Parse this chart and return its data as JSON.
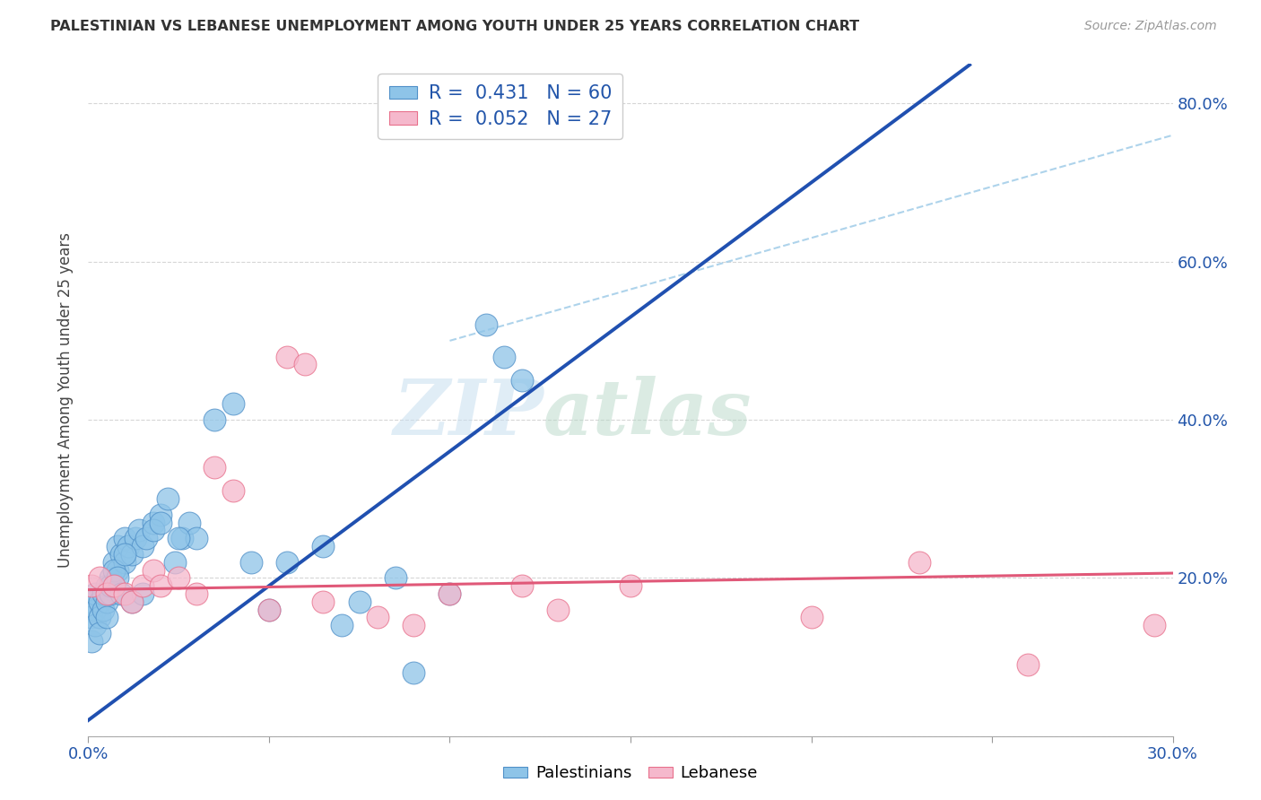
{
  "title": "PALESTINIAN VS LEBANESE UNEMPLOYMENT AMONG YOUTH UNDER 25 YEARS CORRELATION CHART",
  "source": "Source: ZipAtlas.com",
  "ylabel": "Unemployment Among Youth under 25 years",
  "xlim": [
    0.0,
    0.3
  ],
  "ylim": [
    0.0,
    0.85
  ],
  "xticks": [
    0.0,
    0.05,
    0.1,
    0.15,
    0.2,
    0.25,
    0.3
  ],
  "yticks": [
    0.0,
    0.2,
    0.4,
    0.6,
    0.8
  ],
  "ytick_labels_right": [
    "",
    "20.0%",
    "40.0%",
    "60.0%",
    "80.0%"
  ],
  "R_pal": 0.431,
  "N_pal": 60,
  "R_leb": 0.052,
  "N_leb": 27,
  "color_palestinians": "#8ec4e8",
  "color_lebanese": "#f5b8cc",
  "edge_palestinians": "#5090c8",
  "edge_lebanese": "#e8708c",
  "line_palestinians": "#2050b0",
  "line_lebanese": "#e05878",
  "line_dashed": "#a0cce8",
  "watermark_zip": "ZIP",
  "watermark_atlas": "atlas",
  "palestinians_x": [
    0.001,
    0.001,
    0.001,
    0.002,
    0.002,
    0.002,
    0.003,
    0.003,
    0.003,
    0.004,
    0.004,
    0.005,
    0.005,
    0.005,
    0.006,
    0.006,
    0.007,
    0.007,
    0.008,
    0.008,
    0.009,
    0.01,
    0.01,
    0.011,
    0.012,
    0.013,
    0.014,
    0.015,
    0.016,
    0.018,
    0.02,
    0.022,
    0.024,
    0.026,
    0.028,
    0.03,
    0.035,
    0.04,
    0.045,
    0.05,
    0.055,
    0.065,
    0.07,
    0.075,
    0.085,
    0.09,
    0.1,
    0.11,
    0.115,
    0.12,
    0.006,
    0.007,
    0.008,
    0.009,
    0.01,
    0.012,
    0.015,
    0.018,
    0.02,
    0.025
  ],
  "palestinians_y": [
    0.17,
    0.15,
    0.12,
    0.16,
    0.18,
    0.14,
    0.17,
    0.15,
    0.13,
    0.16,
    0.18,
    0.19,
    0.17,
    0.15,
    0.2,
    0.18,
    0.22,
    0.19,
    0.24,
    0.21,
    0.23,
    0.25,
    0.22,
    0.24,
    0.23,
    0.25,
    0.26,
    0.24,
    0.25,
    0.27,
    0.28,
    0.3,
    0.22,
    0.25,
    0.27,
    0.25,
    0.4,
    0.42,
    0.22,
    0.16,
    0.22,
    0.24,
    0.14,
    0.17,
    0.2,
    0.08,
    0.18,
    0.52,
    0.48,
    0.45,
    0.19,
    0.21,
    0.2,
    0.18,
    0.23,
    0.17,
    0.18,
    0.26,
    0.27,
    0.25
  ],
  "lebanese_x": [
    0.001,
    0.003,
    0.005,
    0.007,
    0.01,
    0.012,
    0.015,
    0.018,
    0.02,
    0.025,
    0.03,
    0.035,
    0.04,
    0.05,
    0.055,
    0.06,
    0.065,
    0.08,
    0.09,
    0.1,
    0.12,
    0.13,
    0.15,
    0.2,
    0.23,
    0.26,
    0.295
  ],
  "lebanese_y": [
    0.19,
    0.2,
    0.18,
    0.19,
    0.18,
    0.17,
    0.19,
    0.21,
    0.19,
    0.2,
    0.18,
    0.34,
    0.31,
    0.16,
    0.48,
    0.47,
    0.17,
    0.15,
    0.14,
    0.18,
    0.19,
    0.16,
    0.19,
    0.15,
    0.22,
    0.09,
    0.14
  ]
}
